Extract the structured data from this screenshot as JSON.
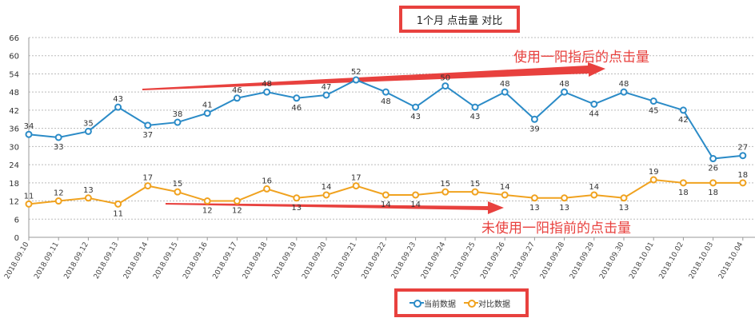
{
  "title": "1个月  点击量  对比",
  "legend": [
    {
      "label": "当前数据",
      "color": "#2b8bc7"
    },
    {
      "label": "对比数据",
      "color": "#f0a21f"
    }
  ],
  "annotations": {
    "top": "使用一阳指后的点击量",
    "bottom": "未使用一阳指前的点击量"
  },
  "chart_data": {
    "type": "line",
    "title": "1个月  点击量  对比",
    "xlabel": "",
    "ylabel": "",
    "ylim": [
      0,
      66
    ],
    "yticks": [
      0,
      6,
      12,
      18,
      24,
      30,
      36,
      42,
      48,
      54,
      60,
      66
    ],
    "grid": true,
    "legend_position": "bottom",
    "categories": [
      "2018.09.10",
      "2018.09.11",
      "2018.09.12",
      "2018.09.13",
      "2018.09.14",
      "2018.09.15",
      "2018.09.16",
      "2018.09.17",
      "2018.09.18",
      "2018.09.19",
      "2018.09.20",
      "2018.09.21",
      "2018.09.22",
      "2018.09.23",
      "2018.09.24",
      "2018.09.25",
      "2018.09.26",
      "2018.09.27",
      "2018.09.28",
      "2018.09.29",
      "2018.09.30",
      "2018.10.01",
      "2018.10.02",
      "2018.10.03",
      "2018.10.04"
    ],
    "series": [
      {
        "name": "当前数据",
        "color": "#2b8bc7",
        "values": [
          34,
          33,
          35,
          43,
          37,
          38,
          41,
          46,
          48,
          46,
          47,
          52,
          48,
          43,
          50,
          43,
          48,
          39,
          48,
          44,
          48,
          45,
          42,
          26,
          27
        ]
      },
      {
        "name": "对比数据",
        "color": "#f0a21f",
        "values": [
          11,
          12,
          13,
          11,
          17,
          15,
          12,
          12,
          16,
          13,
          14,
          17,
          14,
          14,
          15,
          15,
          14,
          13,
          13,
          14,
          13,
          19,
          18,
          18,
          18
        ]
      }
    ]
  }
}
